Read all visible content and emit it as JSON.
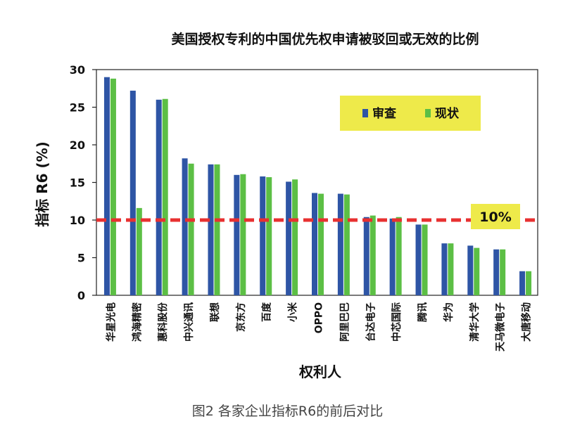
{
  "chart_data": {
    "type": "bar",
    "title": "美国授权专利的中国优先权申请被驳回或无效的比例",
    "xlabel": "权利人",
    "ylabel": "指标 R6 (%)",
    "ylim": [
      0,
      30
    ],
    "yticks": [
      0,
      5,
      10,
      15,
      20,
      25,
      30
    ],
    "grid": false,
    "legend_position": "top-right",
    "categories": [
      "华星光电",
      "鸿海精密",
      "惠科股份",
      "中兴通讯",
      "联想",
      "京东方",
      "百度",
      "小米",
      "OPPO",
      "阿里巴巴",
      "台达电子",
      "中芯国际",
      "腾讯",
      "华为",
      "清华大学",
      "天马微电子",
      "大唐移动"
    ],
    "series": [
      {
        "name": "审查",
        "color": "#2e55a5",
        "values": [
          29.0,
          27.2,
          26.0,
          18.2,
          17.4,
          16.0,
          15.8,
          15.1,
          13.6,
          13.5,
          10.4,
          10.2,
          9.4,
          6.9,
          6.6,
          6.1,
          3.2
        ]
      },
      {
        "name": "现状",
        "color": "#5cbf45",
        "values": [
          28.8,
          11.6,
          26.1,
          17.5,
          17.4,
          16.1,
          15.7,
          15.4,
          13.5,
          13.4,
          10.6,
          10.4,
          9.4,
          6.9,
          6.3,
          6.1,
          3.2
        ]
      }
    ],
    "reference_line": {
      "value": 10,
      "label": "10%",
      "color": "#e83030",
      "style": "dashed"
    },
    "legend_bg": "#eeea4a"
  },
  "caption": "图2 各家企业指标R6的前后对比"
}
